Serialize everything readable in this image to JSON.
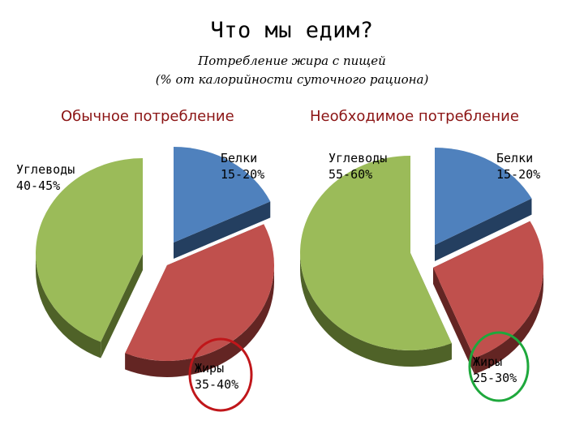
{
  "title": "Что мы едим?",
  "subtitle_line1": "Потребление жира с пищей",
  "subtitle_line2": "(% от калорийности суточного рациона)",
  "chart_data": [
    {
      "type": "pie",
      "title": "Обычное потребление",
      "slices": [
        {
          "label": "Белки",
          "range": "15-20%",
          "value": 17.5,
          "color": "#4f81bd",
          "side": "#243f60"
        },
        {
          "label": "Жиры",
          "range": "35-40%",
          "value": 37.5,
          "color": "#c0504d",
          "side": "#632523",
          "highlight": "#c0161a"
        },
        {
          "label": "Углеводы",
          "range": "40-45%",
          "value": 42.5,
          "color": "#9bbb59",
          "side": "#4f6228"
        }
      ]
    },
    {
      "type": "pie",
      "title": "Необходимое потребление",
      "slices": [
        {
          "label": "Белки",
          "range": "15-20%",
          "value": 17.5,
          "color": "#4f81bd",
          "side": "#243f60"
        },
        {
          "label": "Жиры",
          "range": "25-30%",
          "value": 27.5,
          "color": "#c0504d",
          "side": "#632523",
          "highlight": "#1ea83c"
        },
        {
          "label": "Углеводы",
          "range": "55-60%",
          "value": 57.5,
          "color": "#9bbb59",
          "side": "#4f6228"
        }
      ]
    }
  ]
}
